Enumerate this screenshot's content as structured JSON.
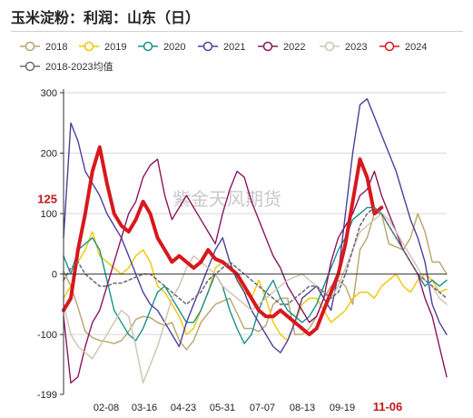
{
  "title": "玉米淀粉：利润：山东（日）",
  "watermark": "紫金天风期货",
  "chart_data": {
    "type": "line",
    "title": "玉米淀粉：利润：山东（日）",
    "xlabel": "",
    "ylabel": "",
    "ylim": [
      -199,
      300
    ],
    "yticks": [
      -199,
      -100,
      0,
      100,
      200,
      300
    ],
    "highlight_y": {
      "value": 125,
      "label": "125"
    },
    "xticks": [
      "02-08",
      "03-16",
      "04-23",
      "05-31",
      "07-07",
      "08-13",
      "09-19",
      "11-06"
    ],
    "highlight_x": "11-06",
    "grid": "horizontal",
    "legend_position": "top",
    "series": [
      {
        "name": "2018",
        "color": "#b8a46a",
        "width": 1.4,
        "dash": "",
        "marker": "circle",
        "values": [
          5,
          -20,
          -55,
          -95,
          -105,
          -110,
          -112,
          -115,
          -110,
          -95,
          -75,
          -70,
          -72,
          -80,
          -85,
          -80,
          -110,
          -125,
          -110,
          -80,
          -65,
          -50,
          -45,
          -40,
          -65,
          -90,
          -90,
          -95,
          -85,
          -50,
          -40,
          -40,
          -100,
          -100,
          -90,
          -70,
          -40,
          -20,
          -10,
          -20,
          -50,
          40,
          60,
          100,
          100,
          50,
          45,
          40,
          60,
          100,
          70,
          20,
          20,
          0
        ]
      },
      {
        "name": "2019",
        "color": "#f2c500",
        "width": 1.4,
        "dash": "",
        "marker": "circle",
        "values": [
          -40,
          -20,
          20,
          40,
          70,
          30,
          20,
          10,
          0,
          10,
          30,
          40,
          20,
          -20,
          -30,
          -50,
          -70,
          -100,
          -90,
          -60,
          -30,
          10,
          20,
          10,
          -5,
          -30,
          -40,
          -10,
          -40,
          -80,
          -100,
          -110,
          -80,
          -50,
          -40,
          -40,
          -60,
          -80,
          -70,
          -60,
          -40,
          -30,
          -30,
          -40,
          -20,
          -10,
          0,
          -20,
          -30,
          -10,
          0,
          -10,
          -30,
          -25
        ]
      },
      {
        "name": "2020",
        "color": "#18918e",
        "width": 1.4,
        "dash": "",
        "marker": "circle",
        "values": [
          30,
          0,
          40,
          50,
          60,
          40,
          -10,
          -60,
          -80,
          -100,
          -110,
          -90,
          -60,
          -30,
          -20,
          -40,
          -60,
          -80,
          -80,
          -60,
          -30,
          0,
          -20,
          -60,
          -90,
          -115,
          -100,
          -60,
          -30,
          -10,
          -40,
          -60,
          -70,
          -80,
          -70,
          -50,
          -20,
          10,
          40,
          60,
          90,
          100,
          110,
          110,
          100,
          80,
          60,
          40,
          20,
          0,
          -20,
          -10,
          -20,
          -10
        ]
      },
      {
        "name": "2021",
        "color": "#4b3f9a",
        "width": 1.4,
        "dash": "",
        "marker": "circle",
        "values": [
          60,
          250,
          220,
          170,
          150,
          130,
          100,
          80,
          60,
          30,
          0,
          -30,
          -50,
          -60,
          -80,
          -100,
          -120,
          -80,
          -50,
          -20,
          10,
          40,
          60,
          20,
          -10,
          -30,
          -60,
          -80,
          -100,
          -120,
          -130,
          -110,
          -80,
          -40,
          -30,
          -20,
          -40,
          -60,
          0,
          100,
          200,
          280,
          290,
          260,
          230,
          200,
          170,
          130,
          90,
          60,
          20,
          -50,
          -80,
          -100
        ]
      },
      {
        "name": "2022",
        "color": "#8a1560",
        "width": 1.4,
        "dash": "",
        "marker": "circle",
        "values": [
          -70,
          -180,
          -170,
          -120,
          -80,
          -60,
          -20,
          20,
          60,
          100,
          120,
          160,
          180,
          190,
          130,
          90,
          110,
          130,
          110,
          90,
          70,
          50,
          100,
          140,
          170,
          160,
          120,
          90,
          60,
          30,
          10,
          -20,
          -40,
          -60,
          -80,
          -70,
          -40,
          20,
          60,
          80,
          100,
          130,
          140,
          170,
          130,
          100,
          70,
          40,
          20,
          0,
          -40,
          -70,
          -120,
          -170
        ]
      },
      {
        "name": "2023",
        "color": "#cfc3ae",
        "width": 1.4,
        "dash": "",
        "marker": "circle",
        "values": [
          -50,
          -100,
          -120,
          -130,
          -140,
          -120,
          -100,
          -80,
          -60,
          -70,
          -120,
          -180,
          -150,
          -120,
          -80,
          -40,
          -20,
          10,
          30,
          20,
          10,
          0,
          -20,
          -30,
          -40,
          -50,
          -60,
          -50,
          -40,
          -30,
          -20,
          -10,
          -5,
          0,
          -10,
          -20,
          -30,
          -40,
          -20,
          10,
          40,
          70,
          80,
          90,
          100,
          90,
          70,
          50,
          30,
          10,
          -10,
          -20,
          -40,
          -50
        ]
      },
      {
        "name": "2024",
        "color": "#d7181e",
        "width": 4,
        "dash": "",
        "marker": "circle",
        "values": [
          -60,
          -40,
          40,
          100,
          170,
          210,
          150,
          100,
          80,
          70,
          90,
          120,
          100,
          60,
          40,
          20,
          30,
          20,
          10,
          20,
          40,
          25,
          20,
          10,
          0,
          -20,
          -40,
          -60,
          -70,
          -70,
          -60,
          -70,
          -80,
          -90,
          -100,
          -90,
          -60,
          -30,
          0,
          50,
          120,
          190,
          160,
          100,
          110
        ]
      },
      {
        "name": "2018-2023均值",
        "color": "#6d6d7e",
        "width": 1.6,
        "dash": "3,3",
        "marker": "circle",
        "values": [
          -10,
          10,
          20,
          0,
          -10,
          -20,
          -20,
          -15,
          -15,
          -10,
          -5,
          0,
          0,
          -10,
          -20,
          -30,
          -40,
          -50,
          -40,
          -30,
          -10,
          0,
          10,
          20,
          10,
          0,
          -10,
          -20,
          -30,
          -40,
          -50,
          -50,
          -40,
          -30,
          -20,
          -20,
          -30,
          -40,
          -30,
          0,
          40,
          80,
          100,
          110,
          100,
          80,
          60,
          40,
          20,
          0,
          -10,
          -20,
          -30,
          -40
        ]
      }
    ]
  }
}
